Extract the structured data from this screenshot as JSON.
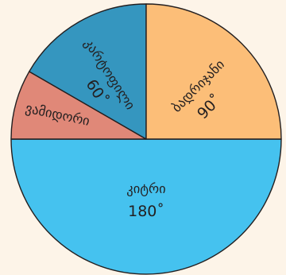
{
  "chart_data": {
    "type": "pie",
    "unit": "˚",
    "slices": [
      {
        "label": "კიტრი",
        "value": 180,
        "value_label": "180˚",
        "color": "#45c2ef"
      },
      {
        "label": "ვამიდორი",
        "value": 30,
        "value_label": "",
        "color": "#e08878"
      },
      {
        "label": "კარტოფილი",
        "value": 60,
        "value_label": "60˚",
        "color": "#3596bf"
      },
      {
        "label": "ბადრიჯანი",
        "value": 90,
        "value_label": "90˚",
        "color": "#fcbe78"
      }
    ]
  }
}
